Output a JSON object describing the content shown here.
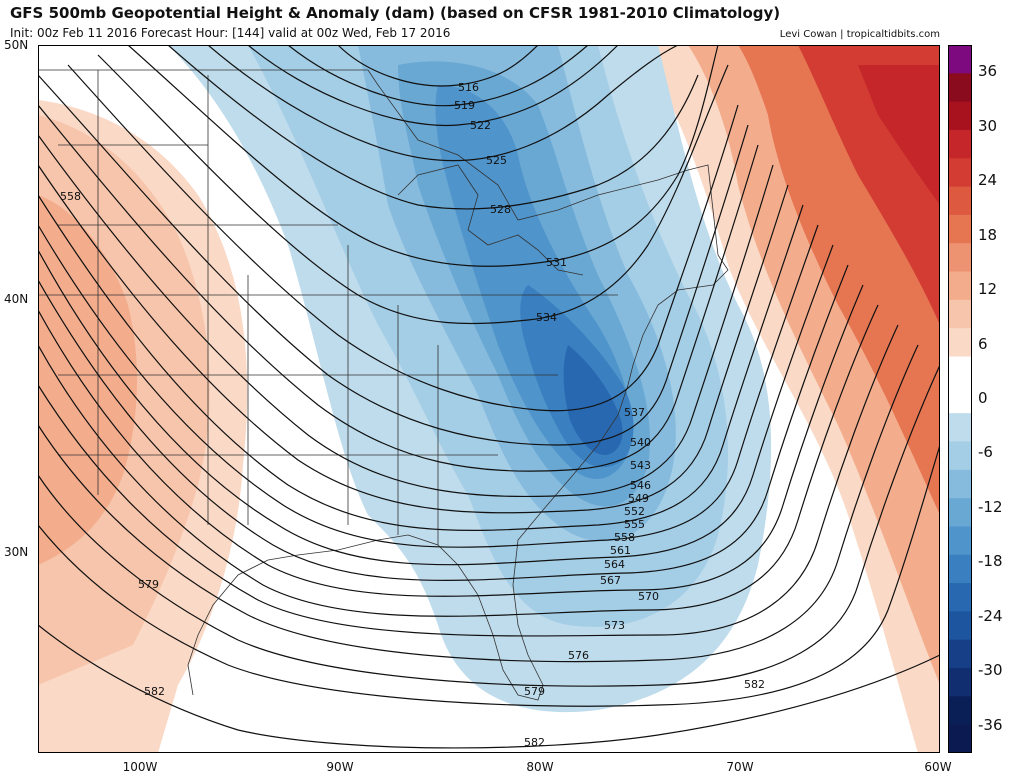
{
  "header": {
    "title": "GFS 500mb Geopotential Height & Anomaly (dam) (based on CFSR 1981-2010 Climatology)",
    "subtitle": "Init: 00z Feb 11 2016   Forecast Hour: [144]   valid at 00z Wed, Feb 17 2016",
    "credit": "Levi Cowan | tropicaltidbits.com"
  },
  "axes": {
    "lat_labels": [
      "50N",
      "40N",
      "30N"
    ],
    "lon_labels": [
      "100W",
      "90W",
      "80W",
      "70W",
      "60W"
    ]
  },
  "colorbar": {
    "labels": [
      "36",
      "30",
      "24",
      "18",
      "12",
      "6",
      "0",
      "-6",
      "-12",
      "-18",
      "-24",
      "-30",
      "-36"
    ],
    "colors": [
      "#7d0a7f",
      "#8a0a1e",
      "#a8121f",
      "#c4262a",
      "#d23c33",
      "#dd5a40",
      "#e67552",
      "#ee9372",
      "#f3ad8d",
      "#f7c5ab",
      "#fad9c6",
      "#ffffff",
      "#ffffff",
      "#bfdcec",
      "#a4cde6",
      "#86bbde",
      "#6aa8d4",
      "#4f94cb",
      "#3a7fc0",
      "#2868b0",
      "#1e559f",
      "#173f87",
      "#112e70",
      "#0b1f57",
      "#0b1a50"
    ]
  },
  "contour_labels": [
    {
      "text": "516"
    },
    {
      "text": "519"
    },
    {
      "text": "522"
    },
    {
      "text": "525"
    },
    {
      "text": "528"
    },
    {
      "text": "531"
    },
    {
      "text": "534"
    },
    {
      "text": "537"
    },
    {
      "text": "540"
    },
    {
      "text": "543"
    },
    {
      "text": "546"
    },
    {
      "text": "549"
    },
    {
      "text": "552"
    },
    {
      "text": "555"
    },
    {
      "text": "558"
    },
    {
      "text": "561"
    },
    {
      "text": "564"
    },
    {
      "text": "567"
    },
    {
      "text": "570"
    },
    {
      "text": "573"
    },
    {
      "text": "576"
    },
    {
      "text": "579"
    },
    {
      "text": "582"
    },
    {
      "text": "558"
    },
    {
      "text": "579"
    },
    {
      "text": "582"
    },
    {
      "text": "582"
    }
  ]
}
